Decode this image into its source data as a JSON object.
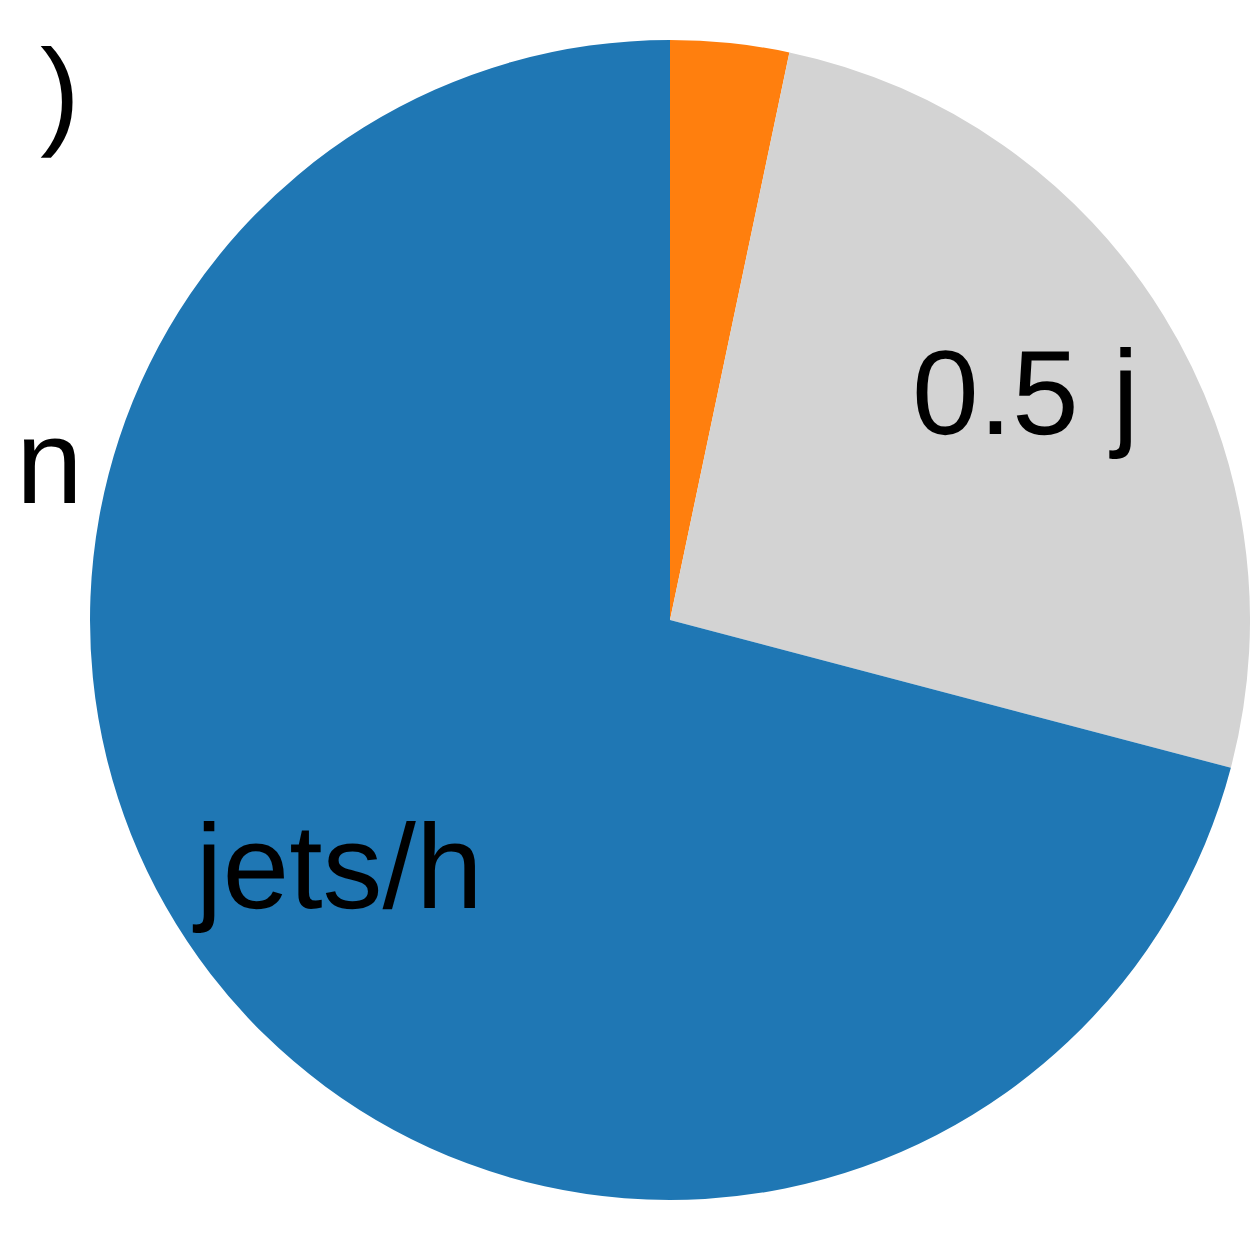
{
  "chart_data": {
    "type": "pie",
    "categories": [
      null,
      "0.5 j",
      "jets/h"
    ],
    "values": [
      3.3,
      25.8,
      70.9
    ],
    "colors": [
      "#ff7f0e",
      "#d3d3d3",
      "#1f77b4"
    ],
    "annotations": [
      ")",
      "n"
    ],
    "legend": false
  }
}
